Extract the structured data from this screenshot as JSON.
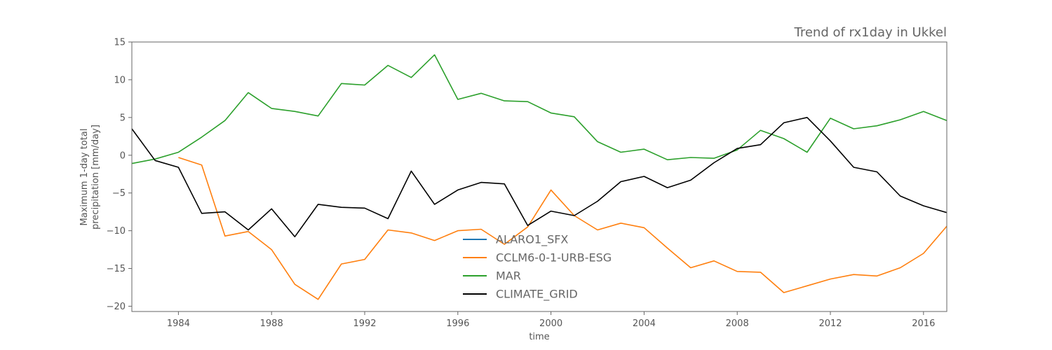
{
  "chart_data": {
    "type": "line",
    "title": "Trend of rx1day in Ukkel",
    "xlabel": "time",
    "ylabel_lines": [
      "Maximum 1-day total",
      "precipitation [mm/day]"
    ],
    "xlim": [
      1982,
      2017
    ],
    "ylim": [
      -20.7,
      15
    ],
    "xticks": [
      1984,
      1988,
      1992,
      1996,
      2000,
      2004,
      2008,
      2012,
      2016
    ],
    "yticks": [
      -20,
      -15,
      -10,
      -5,
      0,
      5,
      10,
      15
    ],
    "grid": false,
    "legend_position": "lower-center",
    "series": [
      {
        "name": "ALARO1_SFX",
        "color": "#1f77b4",
        "x": [],
        "values": []
      },
      {
        "name": "CCLM6-0-1-URB-ESG",
        "color": "#ff7f0e",
        "x": [
          1984,
          1985,
          1986,
          1987,
          1988,
          1989,
          1990,
          1991,
          1992,
          1993,
          1994,
          1995,
          1996,
          1997,
          1998,
          1999,
          2000,
          2001,
          2002,
          2003,
          2004,
          2005,
          2006,
          2007,
          2008,
          2009,
          2010,
          2011,
          2012,
          2013,
          2014,
          2015,
          2016,
          2017
        ],
        "values": [
          -0.3,
          -1.3,
          -10.7,
          -10.1,
          -12.5,
          -17.1,
          -19.1,
          -14.4,
          -13.8,
          -9.9,
          -10.3,
          -11.3,
          -10.0,
          -9.8,
          -11.8,
          -9.5,
          -4.6,
          -8.0,
          -9.9,
          -9.0,
          -9.6,
          -12.3,
          -14.9,
          -14.0,
          -15.4,
          -15.5,
          -18.2,
          -17.3,
          -16.4,
          -15.8,
          -16.0,
          -14.9,
          -13.0,
          -9.4
        ]
      },
      {
        "name": "MAR",
        "color": "#2ca02c",
        "x": [
          1982,
          1983,
          1984,
          1985,
          1986,
          1987,
          1988,
          1989,
          1990,
          1991,
          1992,
          1993,
          1994,
          1995,
          1996,
          1997,
          1998,
          1999,
          2000,
          2001,
          2002,
          2003,
          2004,
          2005,
          2006,
          2007,
          2008,
          2009,
          2010,
          2011,
          2012,
          2013,
          2014,
          2015,
          2016,
          2017
        ],
        "values": [
          -1.1,
          -0.5,
          0.4,
          2.4,
          4.6,
          8.3,
          6.2,
          5.8,
          5.2,
          9.5,
          9.3,
          11.9,
          10.3,
          13.3,
          7.4,
          8.2,
          7.2,
          7.1,
          5.6,
          5.1,
          1.8,
          0.4,
          0.8,
          -0.6,
          -0.3,
          -0.4,
          0.7,
          3.3,
          2.2,
          0.4,
          4.9,
          3.5,
          3.9,
          4.7,
          5.8,
          4.6
        ]
      },
      {
        "name": "CLIMATE_GRID",
        "color": "#000000",
        "x": [
          1982,
          1983,
          1984,
          1985,
          1986,
          1987,
          1988,
          1989,
          1990,
          1991,
          1992,
          1993,
          1994,
          1995,
          1996,
          1997,
          1998,
          1999,
          2000,
          2001,
          2002,
          2003,
          2004,
          2005,
          2006,
          2007,
          2008,
          2009,
          2010,
          2011,
          2012,
          2013,
          2014,
          2015,
          2016,
          2017
        ],
        "values": [
          3.5,
          -0.7,
          -1.6,
          -7.7,
          -7.5,
          -9.9,
          -7.1,
          -10.8,
          -6.5,
          -6.9,
          -7.0,
          -8.4,
          -2.1,
          -6.5,
          -4.6,
          -3.6,
          -3.8,
          -9.3,
          -7.4,
          -8.0,
          -6.1,
          -3.5,
          -2.8,
          -4.3,
          -3.3,
          -1.0,
          0.9,
          1.4,
          4.3,
          5.0,
          1.9,
          -1.6,
          -2.2,
          -5.4,
          -6.7,
          -7.6
        ]
      }
    ]
  }
}
